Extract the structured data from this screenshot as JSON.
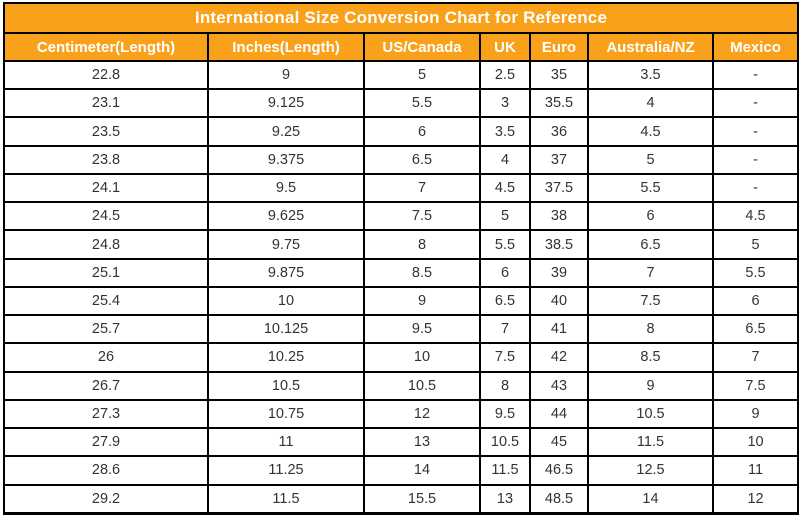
{
  "title": "International Size Conversion Chart for Reference",
  "colors": {
    "header_bg": "#F9A11B",
    "header_text": "#FFFFFF",
    "border": "#000000",
    "cell_text": "#333333",
    "cell_bg": "#FFFFFF"
  },
  "chart_data": {
    "type": "table",
    "title": "International Size Conversion Chart for Reference",
    "columns": [
      "Centimeter(Length)",
      "Inches(Length)",
      "US/Canada",
      "UK",
      "Euro",
      "Australia/NZ",
      "Mexico"
    ],
    "rows": [
      [
        "22.8",
        "9",
        "5",
        "2.5",
        "35",
        "3.5",
        "-"
      ],
      [
        "23.1",
        "9.125",
        "5.5",
        "3",
        "35.5",
        "4",
        "-"
      ],
      [
        "23.5",
        "9.25",
        "6",
        "3.5",
        "36",
        "4.5",
        "-"
      ],
      [
        "23.8",
        "9.375",
        "6.5",
        "4",
        "37",
        "5",
        "-"
      ],
      [
        "24.1",
        "9.5",
        "7",
        "4.5",
        "37.5",
        "5.5",
        "-"
      ],
      [
        "24.5",
        "9.625",
        "7.5",
        "5",
        "38",
        "6",
        "4.5"
      ],
      [
        "24.8",
        "9.75",
        "8",
        "5.5",
        "38.5",
        "6.5",
        "5"
      ],
      [
        "25.1",
        "9.875",
        "8.5",
        "6",
        "39",
        "7",
        "5.5"
      ],
      [
        "25.4",
        "10",
        "9",
        "6.5",
        "40",
        "7.5",
        "6"
      ],
      [
        "25.7",
        "10.125",
        "9.5",
        "7",
        "41",
        "8",
        "6.5"
      ],
      [
        "26",
        "10.25",
        "10",
        "7.5",
        "42",
        "8.5",
        "7"
      ],
      [
        "26.7",
        "10.5",
        "10.5",
        "8",
        "43",
        "9",
        "7.5"
      ],
      [
        "27.3",
        "10.75",
        "12",
        "9.5",
        "44",
        "10.5",
        "9"
      ],
      [
        "27.9",
        "11",
        "13",
        "10.5",
        "45",
        "11.5",
        "10"
      ],
      [
        "28.6",
        "11.25",
        "14",
        "11.5",
        "46.5",
        "12.5",
        "11"
      ],
      [
        "29.2",
        "11.5",
        "15.5",
        "13",
        "48.5",
        "14",
        "12"
      ]
    ]
  }
}
